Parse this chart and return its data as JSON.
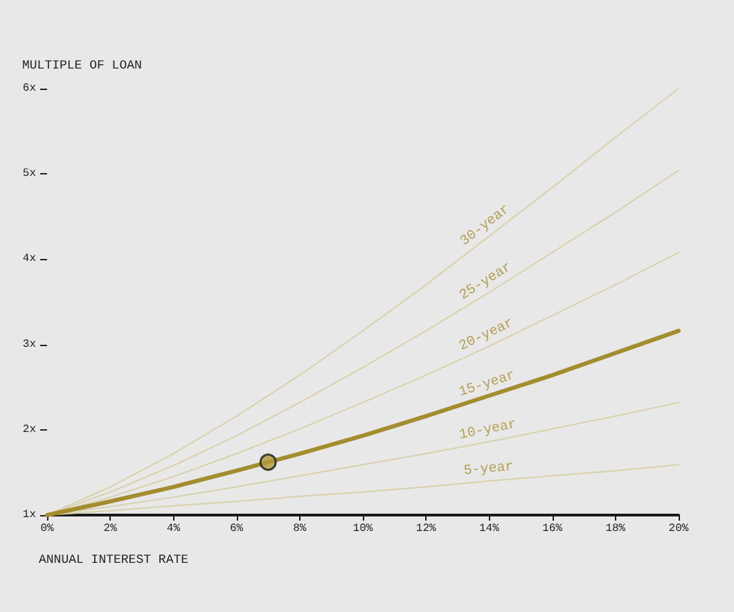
{
  "chart_data": {
    "type": "line",
    "xlabel": "ANNUAL INTEREST RATE",
    "ylabel": "MULTIPLE OF LOAN",
    "x": [
      0,
      2,
      4,
      6,
      8,
      10,
      12,
      14,
      16,
      18,
      20
    ],
    "series": [
      {
        "name": "30-year",
        "color": "#d9d1ab",
        "values": [
          1,
          1.33,
          1.72,
          2.16,
          2.64,
          3.16,
          3.7,
          4.27,
          4.84,
          5.43,
          6.0
        ]
      },
      {
        "name": "25-year",
        "color": "#d9d1ab",
        "values": [
          1,
          1.27,
          1.58,
          1.93,
          2.32,
          2.73,
          3.16,
          3.61,
          4.08,
          4.55,
          5.04
        ]
      },
      {
        "name": "20-year",
        "color": "#d9d1ab",
        "values": [
          1,
          1.21,
          1.45,
          1.72,
          2.01,
          2.32,
          2.64,
          2.98,
          3.34,
          3.7,
          4.08
        ]
      },
      {
        "name": "15-year",
        "color": "#a38d2f",
        "values": [
          1,
          1.16,
          1.33,
          1.52,
          1.72,
          1.93,
          2.16,
          2.4,
          2.64,
          2.9,
          3.16
        ]
      },
      {
        "name": "10-year",
        "color": "#d9d1ab",
        "values": [
          1,
          1.1,
          1.21,
          1.33,
          1.46,
          1.59,
          1.72,
          1.86,
          2.01,
          2.16,
          2.32
        ]
      },
      {
        "name": "5-year",
        "color": "#d9d1ab",
        "values": [
          1,
          1.05,
          1.11,
          1.16,
          1.22,
          1.27,
          1.33,
          1.4,
          1.46,
          1.52,
          1.59
        ]
      },
      {
        "type": "scatter",
        "marker": "circle",
        "color": "#b09a3a",
        "x": [
          7
        ],
        "values": [
          1.62
        ]
      }
    ],
    "xlim": [
      0,
      20
    ],
    "xticks": [
      {
        "value": 0,
        "label": "0%"
      },
      {
        "value": 2,
        "label": "2%"
      },
      {
        "value": 4,
        "label": "4%"
      },
      {
        "value": 6,
        "label": "6%"
      },
      {
        "value": 8,
        "label": "8%"
      },
      {
        "value": 10,
        "label": "10%"
      },
      {
        "value": 12,
        "label": "12%"
      },
      {
        "value": 14,
        "label": "14%"
      },
      {
        "value": 16,
        "label": "16%"
      },
      {
        "value": 18,
        "label": "18%"
      },
      {
        "value": 20,
        "label": "20%"
      }
    ],
    "ylim": [
      1,
      6
    ],
    "yticks": [
      {
        "value": 1,
        "label": "1x"
      },
      {
        "value": 2,
        "label": "2x"
      },
      {
        "value": 3,
        "label": "3x"
      },
      {
        "value": 4,
        "label": "4x"
      },
      {
        "value": 5,
        "label": "5x"
      },
      {
        "value": 6,
        "label": "6x"
      }
    ],
    "grid": false,
    "legend": false,
    "marker": "none",
    "line_style": "solid"
  }
}
